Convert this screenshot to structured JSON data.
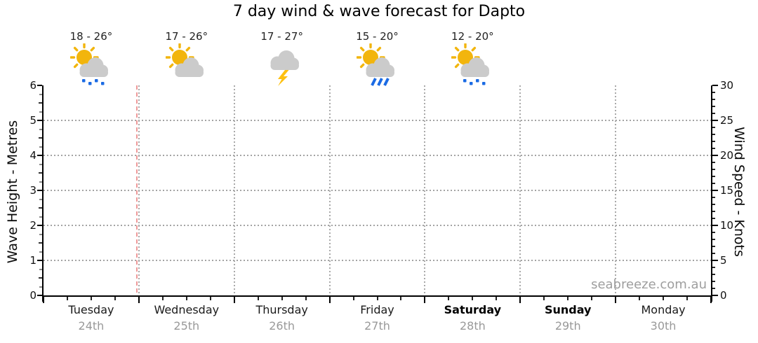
{
  "title": "7 day wind & wave forecast for Dapto",
  "watermark": "seabreeze.com.au",
  "chart_data": {
    "type": "line",
    "title": "7 day wind & wave forecast for Dapto",
    "subtitle": "",
    "left_axis": {
      "label": "Wave Height - Metres",
      "min": 0,
      "max": 6,
      "major_tick_step": 1,
      "minor_tick_step": 0.25,
      "tick_labels": [
        0,
        1,
        2,
        3,
        4,
        5,
        6
      ],
      "gridlines": [
        1,
        2,
        3,
        4,
        5
      ]
    },
    "right_axis": {
      "label": "Wind Speed - Knots",
      "min": 0,
      "max": 30,
      "major_tick_step": 5,
      "minor_tick_step": 1,
      "tick_labels": [
        0,
        5,
        10,
        15,
        20,
        25,
        30
      ],
      "gridlines": [
        5,
        10,
        15,
        20,
        25
      ]
    },
    "x_axis": {
      "days_shown": 7,
      "minor_ticks_per_day": 4,
      "day_boundary_gridlines": true
    },
    "days": [
      {
        "name": "Tuesday",
        "date": "24th",
        "temp": "18 - 26°",
        "icon": "sun-cloud-drizzle-icon",
        "weekend": false
      },
      {
        "name": "Wednesday",
        "date": "25th",
        "temp": "17 - 26°",
        "icon": "sun-cloud-icon",
        "weekend": false
      },
      {
        "name": "Thursday",
        "date": "26th",
        "temp": "17 - 27°",
        "icon": "storm-icon",
        "weekend": false
      },
      {
        "name": "Friday",
        "date": "27th",
        "temp": "15 - 20°",
        "icon": "sun-cloud-rain-icon",
        "weekend": false
      },
      {
        "name": "Saturday",
        "date": "28th",
        "temp": "12 - 20°",
        "icon": "sun-cloud-drizzle-icon",
        "weekend": true
      },
      {
        "name": "Sunday",
        "date": "29th",
        "temp": null,
        "icon": null,
        "weekend": true
      },
      {
        "name": "Monday",
        "date": "30th",
        "temp": null,
        "icon": null,
        "weekend": false
      }
    ],
    "series": [],
    "current_time_marker": {
      "day_index": 1,
      "color": "#ef9a9a"
    },
    "grid": true,
    "legend": "none",
    "colors": {
      "sun": "#F2B50D",
      "lightning": "#FEC00F",
      "cloud": "#CBCBCB",
      "rain": "#1B6BE4",
      "grid": "#A4A4A4",
      "axis": "#000000",
      "date_text": "#999999",
      "watermark": "#9E9E9E"
    }
  }
}
